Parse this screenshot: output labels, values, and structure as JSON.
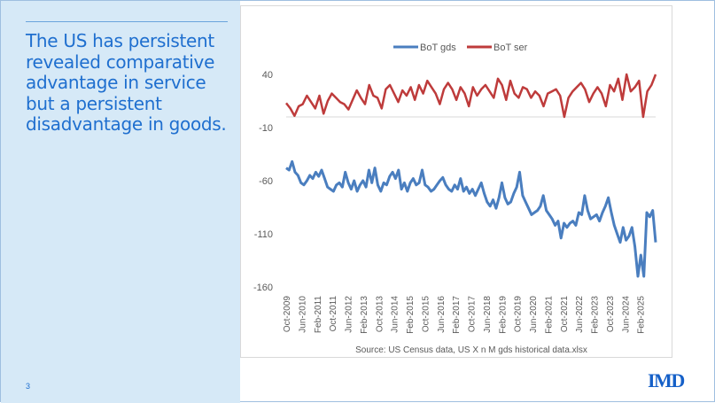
{
  "slide": {
    "headline": "The US has persistent revealed comparative advantage in service but a persistent disadvantage in goods.",
    "page_number": "3",
    "logo": "IMD"
  },
  "chart_data": {
    "type": "line",
    "title": "",
    "legend": [
      "BoT gds",
      "BoT ser"
    ],
    "legend_position": "top",
    "source": "Source: US Census data, US X n M gds historical data.xlsx",
    "ylim": [
      -160,
      40
    ],
    "yticks": [
      40,
      -10,
      -60,
      -110,
      -160
    ],
    "x_start": "Oct-2009",
    "x_end": "Sep-2025",
    "x_range_months": 192,
    "xtick_labels": [
      "Oct-2009",
      "Jun-2010",
      "Feb-2011",
      "Oct-2011",
      "Jun-2012",
      "Feb-2013",
      "Oct-2013",
      "Jun-2014",
      "Feb-2015",
      "Oct-2015",
      "Jun-2016",
      "Feb-2017",
      "Oct-2017",
      "Jun-2018",
      "Feb-2019",
      "Oct-2019",
      "Jun-2020",
      "Feb-2021",
      "Oct-2021",
      "Jun-2022",
      "Feb-2023",
      "Oct-2023",
      "Jun-2024",
      "Feb-2025"
    ],
    "colors": {
      "BoT gds": "#4a7ebf",
      "BoT ser": "#be3b3b"
    },
    "series": [
      {
        "name": "BoT gds",
        "values": [
          -48,
          -50,
          -42,
          -52,
          -55,
          -62,
          -64,
          -60,
          -55,
          -58,
          -52,
          -56,
          -50,
          -58,
          -66,
          -68,
          -70,
          -64,
          -62,
          -66,
          -52,
          -62,
          -68,
          -60,
          -70,
          -64,
          -60,
          -66,
          -50,
          -62,
          -48,
          -64,
          -70,
          -62,
          -64,
          -56,
          -52,
          -58,
          -50,
          -68,
          -62,
          -70,
          -62,
          -58,
          -64,
          -62,
          -50,
          -64,
          -66,
          -70,
          -68,
          -64,
          -60,
          -57,
          -64,
          -68,
          -70,
          -64,
          -68,
          -58,
          -70,
          -66,
          -72,
          -68,
          -74,
          -68,
          -62,
          -72,
          -80,
          -84,
          -78,
          -86,
          -76,
          -62,
          -76,
          -82,
          -80,
          -72,
          -66,
          -52,
          -74,
          -80,
          -86,
          -92,
          -90,
          -88,
          -84,
          -74,
          -88,
          -92,
          -96,
          -102,
          -98,
          -114,
          -100,
          -104,
          -100,
          -98,
          -102,
          -90,
          -92,
          -74,
          -88,
          -96,
          -94,
          -92,
          -98,
          -90,
          -84,
          -76,
          -90,
          -102,
          -110,
          -118,
          -104,
          -116,
          -112,
          -104,
          -122,
          -150,
          -130,
          -150,
          -90,
          -94,
          -88,
          -118
        ]
      },
      {
        "name": "BoT ser",
        "values": [
          13,
          8,
          1,
          10,
          12,
          20,
          14,
          8,
          20,
          3,
          15,
          22,
          18,
          14,
          12,
          7,
          16,
          25,
          18,
          12,
          30,
          20,
          18,
          8,
          26,
          30,
          22,
          14,
          25,
          20,
          28,
          16,
          30,
          22,
          34,
          28,
          22,
          12,
          26,
          32,
          26,
          16,
          28,
          22,
          10,
          28,
          20,
          26,
          30,
          24,
          18,
          36,
          30,
          16,
          34,
          22,
          18,
          28,
          26,
          18,
          24,
          20,
          10,
          22,
          24,
          26,
          20,
          0,
          18,
          24,
          28,
          32,
          26,
          14,
          22,
          28,
          22,
          10,
          30,
          24,
          36,
          16,
          40,
          24,
          28,
          34,
          0,
          24,
          30,
          40
        ]
      }
    ]
  }
}
